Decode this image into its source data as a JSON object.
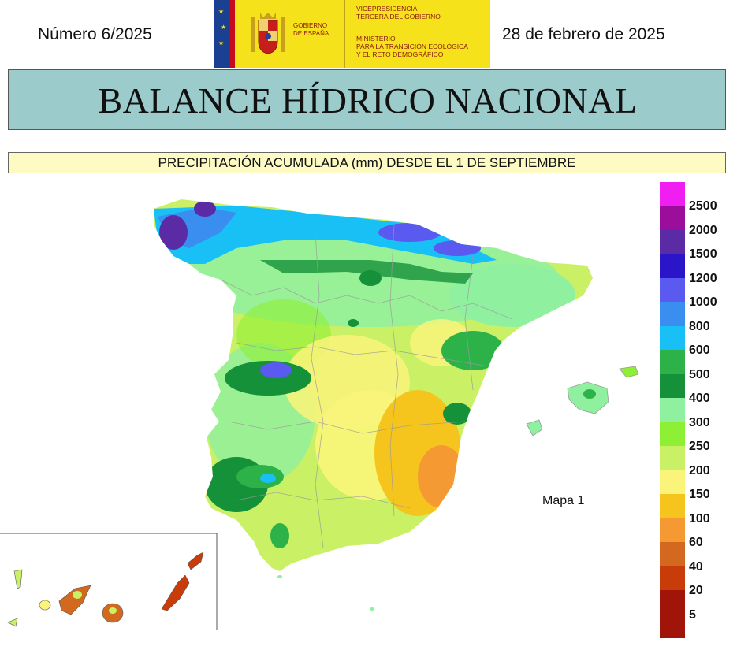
{
  "header": {
    "number": "Número 6/2025",
    "date": "28 de febrero de 2025",
    "logo": {
      "gobierno": [
        "GOBIERNO",
        "DE ESPAÑA"
      ],
      "vicepresidencia": [
        "VICEPRESIDENCIA",
        "TERCERA DEL GOBIERNO"
      ],
      "ministerio": [
        "MINISTERIO",
        "PARA LA TRANSICIÓN ECOLÓGICA",
        "Y EL RETO DEMOGRÁFICO"
      ]
    }
  },
  "title": "BALANCE HÍDRICO NACIONAL",
  "subtitle": "PRECIPITACIÓN ACUMULADA (mm) DESDE EL 1 DE SEPTIEMBRE",
  "map_label": "Mapa 1",
  "legend": {
    "bins": [
      {
        "label": "2500",
        "color": "#f01ef0"
      },
      {
        "label": "2000",
        "color": "#9b0e9b"
      },
      {
        "label": "1500",
        "color": "#5a2ba5"
      },
      {
        "label": "1200",
        "color": "#2a16c8"
      },
      {
        "label": "1000",
        "color": "#5a5af0"
      },
      {
        "label": "800",
        "color": "#3a8ef0"
      },
      {
        "label": "600",
        "color": "#19c0f5"
      },
      {
        "label": "500",
        "color": "#2db24a"
      },
      {
        "label": "400",
        "color": "#15913a"
      },
      {
        "label": "300",
        "color": "#8ff0a0"
      },
      {
        "label": "250",
        "color": "#8ef034"
      },
      {
        "label": "200",
        "color": "#caf065"
      },
      {
        "label": "150",
        "color": "#faf57a"
      },
      {
        "label": "100",
        "color": "#f5c51e"
      },
      {
        "label": "60",
        "color": "#f59a32"
      },
      {
        "label": "40",
        "color": "#d2691e"
      },
      {
        "label": "20",
        "color": "#c83c0a"
      },
      {
        "label": "5",
        "color": "#a0140a"
      }
    ],
    "top_color": "#f01ef0"
  }
}
